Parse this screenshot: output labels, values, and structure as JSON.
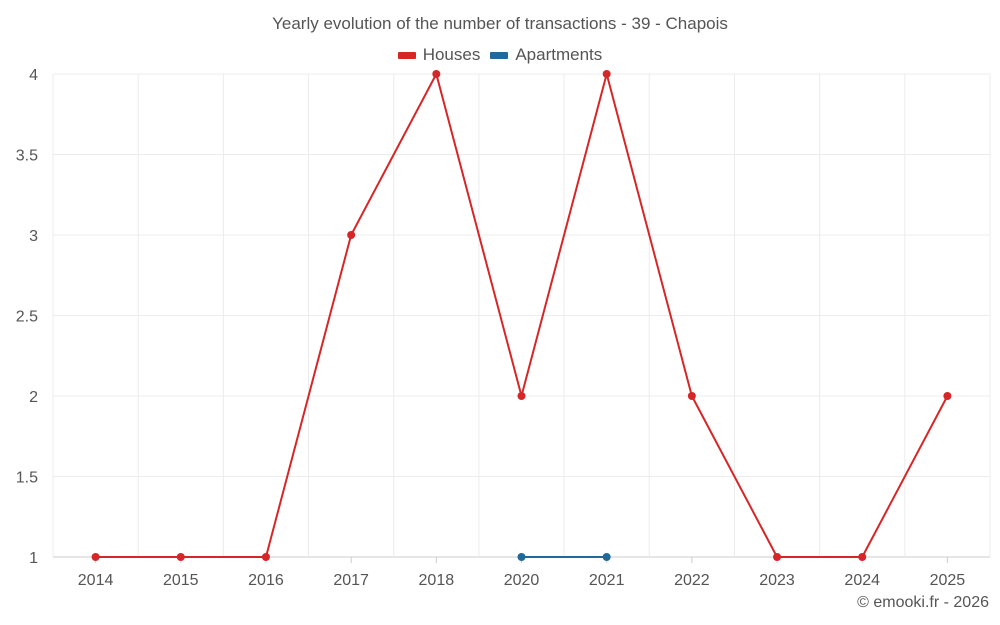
{
  "chart_data": {
    "type": "line",
    "title": "Yearly evolution of the number of transactions - 39 - Chapois",
    "xlabel": "",
    "ylabel": "",
    "categories": [
      "2014",
      "2015",
      "2016",
      "2017",
      "2018",
      "2020",
      "2021",
      "2022",
      "2023",
      "2024",
      "2025"
    ],
    "ylim": [
      1,
      4
    ],
    "yticks": [
      "1",
      "1.5",
      "2",
      "2.5",
      "3",
      "3.5",
      "4"
    ],
    "grid": true,
    "legend_position": "top-center",
    "series": [
      {
        "name": "Houses",
        "color": "#d62728",
        "values": [
          1,
          1,
          1,
          3,
          4,
          2,
          4,
          2,
          1,
          1,
          2
        ]
      },
      {
        "name": "Apartments",
        "color": "#1f6a9a",
        "values": [
          null,
          null,
          null,
          null,
          null,
          1,
          1,
          null,
          null,
          null,
          null
        ]
      }
    ]
  },
  "credit": "© emooki.fr - 2026"
}
